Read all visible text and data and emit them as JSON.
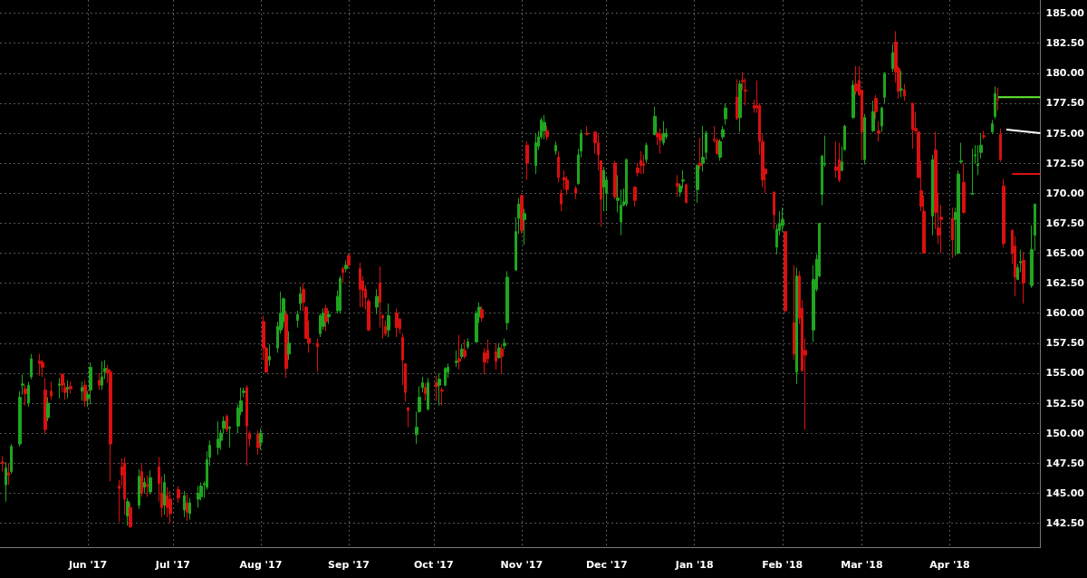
{
  "chart_data": {
    "type": "candlestick",
    "x": [
      "2017-05-02",
      "2017-05-03",
      "2017-05-04",
      "2017-05-05",
      "2017-05-08",
      "2017-05-09",
      "2017-05-10",
      "2017-05-11",
      "2017-05-12",
      "2017-05-15",
      "2017-05-16",
      "2017-05-17",
      "2017-05-18",
      "2017-05-19",
      "2017-05-22",
      "2017-05-23",
      "2017-05-24",
      "2017-05-25",
      "2017-05-26",
      "2017-05-30",
      "2017-05-31",
      "2017-06-01",
      "2017-06-02",
      "2017-06-05",
      "2017-06-06",
      "2017-06-07",
      "2017-06-08",
      "2017-06-09",
      "2017-06-12",
      "2017-06-13",
      "2017-06-14",
      "2017-06-15",
      "2017-06-16",
      "2017-06-19",
      "2017-06-20",
      "2017-06-21",
      "2017-06-22",
      "2017-06-23",
      "2017-06-26",
      "2017-06-27",
      "2017-06-28",
      "2017-06-29",
      "2017-06-30",
      "2017-07-03",
      "2017-07-05",
      "2017-07-06",
      "2017-07-07",
      "2017-07-10",
      "2017-07-11",
      "2017-07-12",
      "2017-07-13",
      "2017-07-14",
      "2017-07-17",
      "2017-07-18",
      "2017-07-19",
      "2017-07-20",
      "2017-07-21",
      "2017-07-24",
      "2017-07-25",
      "2017-07-26",
      "2017-07-27",
      "2017-07-28",
      "2017-07-31",
      "2017-08-01",
      "2017-08-02",
      "2017-08-03",
      "2017-08-04",
      "2017-08-07",
      "2017-08-08",
      "2017-08-09",
      "2017-08-10",
      "2017-08-11",
      "2017-08-14",
      "2017-08-15",
      "2017-08-16",
      "2017-08-17",
      "2017-08-18",
      "2017-08-21",
      "2017-08-22",
      "2017-08-23",
      "2017-08-24",
      "2017-08-25",
      "2017-08-28",
      "2017-08-29",
      "2017-08-30",
      "2017-08-31",
      "2017-09-01",
      "2017-09-05",
      "2017-09-06",
      "2017-09-07",
      "2017-09-08",
      "2017-09-11",
      "2017-09-12",
      "2017-09-13",
      "2017-09-14",
      "2017-09-15",
      "2017-09-18",
      "2017-09-19",
      "2017-09-20",
      "2017-09-21",
      "2017-09-22",
      "2017-09-25",
      "2017-09-26",
      "2017-09-27",
      "2017-09-28",
      "2017-09-29",
      "2017-10-02",
      "2017-10-03",
      "2017-10-04",
      "2017-10-05",
      "2017-10-06",
      "2017-10-09",
      "2017-10-10",
      "2017-10-11",
      "2017-10-12",
      "2017-10-13",
      "2017-10-16",
      "2017-10-17",
      "2017-10-18",
      "2017-10-19",
      "2017-10-20",
      "2017-10-23",
      "2017-10-24",
      "2017-10-25",
      "2017-10-26",
      "2017-10-27",
      "2017-10-30",
      "2017-10-31",
      "2017-11-01",
      "2017-11-02",
      "2017-11-03",
      "2017-11-06",
      "2017-11-07",
      "2017-11-08",
      "2017-11-09",
      "2017-11-10",
      "2017-11-13",
      "2017-11-14",
      "2017-11-15",
      "2017-11-16",
      "2017-11-17",
      "2017-11-20",
      "2017-11-21",
      "2017-11-22",
      "2017-11-24",
      "2017-11-27",
      "2017-11-28",
      "2017-11-29",
      "2017-11-30",
      "2017-12-01",
      "2017-12-04",
      "2017-12-05",
      "2017-12-06",
      "2017-12-07",
      "2017-12-08",
      "2017-12-11",
      "2017-12-12",
      "2017-12-13",
      "2017-12-14",
      "2017-12-15",
      "2017-12-18",
      "2017-12-19",
      "2017-12-20",
      "2017-12-21",
      "2017-12-22",
      "2017-12-26",
      "2017-12-27",
      "2017-12-28",
      "2017-12-29",
      "2018-01-02",
      "2018-01-03",
      "2018-01-04",
      "2018-01-05",
      "2018-01-08",
      "2018-01-09",
      "2018-01-10",
      "2018-01-11",
      "2018-01-12",
      "2018-01-16",
      "2018-01-17",
      "2018-01-18",
      "2018-01-19",
      "2018-01-22",
      "2018-01-23",
      "2018-01-24",
      "2018-01-25",
      "2018-01-26",
      "2018-01-29",
      "2018-01-30",
      "2018-01-31",
      "2018-02-01",
      "2018-02-02",
      "2018-02-05",
      "2018-02-06",
      "2018-02-07",
      "2018-02-08",
      "2018-02-09",
      "2018-02-12",
      "2018-02-13",
      "2018-02-14",
      "2018-02-15",
      "2018-02-16",
      "2018-02-20",
      "2018-02-21",
      "2018-02-22",
      "2018-02-23",
      "2018-02-26",
      "2018-02-27",
      "2018-02-28",
      "2018-03-01",
      "2018-03-02",
      "2018-03-05",
      "2018-03-06",
      "2018-03-07",
      "2018-03-08",
      "2018-03-09",
      "2018-03-12",
      "2018-03-13",
      "2018-03-14",
      "2018-03-15",
      "2018-03-16",
      "2018-03-19",
      "2018-03-20",
      "2018-03-21",
      "2018-03-22",
      "2018-03-23",
      "2018-03-26",
      "2018-03-27",
      "2018-03-28",
      "2018-03-29",
      "2018-04-02",
      "2018-04-03",
      "2018-04-04",
      "2018-04-05",
      "2018-04-06",
      "2018-04-09",
      "2018-04-10",
      "2018-04-11",
      "2018-04-12",
      "2018-04-13",
      "2018-04-16",
      "2018-04-17",
      "2018-04-18",
      "2018-04-19",
      "2018-04-20",
      "2018-04-23",
      "2018-04-24",
      "2018-04-25",
      "2018-04-26",
      "2018-04-27",
      "2018-04-30",
      "2018-05-01"
    ],
    "ohlc": [
      [
        147.6,
        148.1,
        146.8,
        147.5
      ],
      [
        145.7,
        147.6,
        144.3,
        147.1
      ],
      [
        146.7,
        147.5,
        145.7,
        146.5
      ],
      [
        146.8,
        149.1,
        146.6,
        148.9
      ],
      [
        149.1,
        153.5,
        148.9,
        153.0
      ],
      [
        154.0,
        154.9,
        153.2,
        154.1
      ],
      [
        153.7,
        154.0,
        152.3,
        153.3
      ],
      [
        152.5,
        154.3,
        152.2,
        154.0
      ],
      [
        154.7,
        156.6,
        154.5,
        156.2
      ],
      [
        156.0,
        156.6,
        154.8,
        155.8
      ],
      [
        155.9,
        156.1,
        154.7,
        155.5
      ],
      [
        153.6,
        154.6,
        149.9,
        150.3
      ],
      [
        151.3,
        153.0,
        151.0,
        152.5
      ],
      [
        153.5,
        154.3,
        152.8,
        153.1
      ],
      [
        154.0,
        154.6,
        152.9,
        154.1
      ],
      [
        154.9,
        155.0,
        153.4,
        154.0
      ],
      [
        153.8,
        154.2,
        152.8,
        153.4
      ],
      [
        153.7,
        154.4,
        152.9,
        153.8
      ],
      [
        153.9,
        154.3,
        153.3,
        153.7
      ],
      [
        153.5,
        154.3,
        152.7,
        153.8
      ],
      [
        154.0,
        154.4,
        152.2,
        152.7
      ],
      [
        152.9,
        153.5,
        152.2,
        153.2
      ],
      [
        153.6,
        155.9,
        152.4,
        155.5
      ],
      [
        154.4,
        155.0,
        153.6,
        154.0
      ],
      [
        154.0,
        156.0,
        153.6,
        154.7
      ],
      [
        155.1,
        156.1,
        154.5,
        155.4
      ],
      [
        155.3,
        155.7,
        154.2,
        155.0
      ],
      [
        155.1,
        155.3,
        146.0,
        149.1
      ],
      [
        145.6,
        146.1,
        142.6,
        145.4
      ],
      [
        147.2,
        147.9,
        145.6,
        146.5
      ],
      [
        147.5,
        148.0,
        143.2,
        144.5
      ],
      [
        143.1,
        144.6,
        142.3,
        144.3
      ],
      [
        143.8,
        144.2,
        142.1,
        142.2
      ],
      [
        144.0,
        147.0,
        143.7,
        146.4
      ],
      [
        146.8,
        147.4,
        144.7,
        145.0
      ],
      [
        145.5,
        146.3,
        145.0,
        145.9
      ],
      [
        145.7,
        146.5,
        144.7,
        145.6
      ],
      [
        145.1,
        146.9,
        144.9,
        146.3
      ],
      [
        147.2,
        148.0,
        144.3,
        145.8
      ],
      [
        145.0,
        146.4,
        143.0,
        143.8
      ],
      [
        144.0,
        146.6,
        143.2,
        145.9
      ],
      [
        144.8,
        145.5,
        143.0,
        143.8
      ],
      [
        144.5,
        145.2,
        142.5,
        143.3
      ],
      [
        145.3,
        145.6,
        144.2,
        144.6
      ],
      [
        143.6,
        145.2,
        143.0,
        144.8
      ],
      [
        144.2,
        144.9,
        142.7,
        143.4
      ],
      [
        143.3,
        144.6,
        142.8,
        144.2
      ],
      [
        144.5,
        145.6,
        143.8,
        145.0
      ],
      [
        144.7,
        145.9,
        144.4,
        145.6
      ],
      [
        145.7,
        146.0,
        144.6,
        145.8
      ],
      [
        145.5,
        148.5,
        145.3,
        147.8
      ],
      [
        148.0,
        149.4,
        147.3,
        149.0
      ],
      [
        148.8,
        151.0,
        148.2,
        149.5
      ],
      [
        149.4,
        150.3,
        148.6,
        150.0
      ],
      [
        150.4,
        151.4,
        150.0,
        151.0
      ],
      [
        151.4,
        151.6,
        150.1,
        150.3
      ],
      [
        150.4,
        150.6,
        148.8,
        150.5
      ],
      [
        150.6,
        152.4,
        150.0,
        152.1
      ],
      [
        151.8,
        153.8,
        151.5,
        152.7
      ],
      [
        153.4,
        153.8,
        153.0,
        153.5
      ],
      [
        153.8,
        154.0,
        147.3,
        150.6
      ],
      [
        150.0,
        150.2,
        148.9,
        149.5
      ],
      [
        149.9,
        150.2,
        148.2,
        148.8
      ],
      [
        149.2,
        150.4,
        148.6,
        150.0
      ],
      [
        159.3,
        159.8,
        156.1,
        157.1
      ],
      [
        157.1,
        157.2,
        155.0,
        155.1
      ],
      [
        156.1,
        157.4,
        155.6,
        156.4
      ],
      [
        157.1,
        159.3,
        156.7,
        158.9
      ],
      [
        158.6,
        161.8,
        158.3,
        160.0
      ],
      [
        159.3,
        161.3,
        158.8,
        161.2
      ],
      [
        159.9,
        160.2,
        154.6,
        155.4
      ],
      [
        156.6,
        158.5,
        156.1,
        157.5
      ],
      [
        159.4,
        160.2,
        158.8,
        159.9
      ],
      [
        160.8,
        162.2,
        160.2,
        161.6
      ],
      [
        162.0,
        162.5,
        160.2,
        160.9
      ],
      [
        160.5,
        160.6,
        157.9,
        157.9
      ],
      [
        157.9,
        159.4,
        156.7,
        157.5
      ],
      [
        157.5,
        157.9,
        155.1,
        157.2
      ],
      [
        158.3,
        160.0,
        158.0,
        159.8
      ],
      [
        158.9,
        160.4,
        158.6,
        160.0
      ],
      [
        160.4,
        160.7,
        158.5,
        159.3
      ],
      [
        159.7,
        160.2,
        159.1,
        159.9
      ],
      [
        160.2,
        161.9,
        160.0,
        161.4
      ],
      [
        160.2,
        163.1,
        160.0,
        162.9
      ],
      [
        163.7,
        163.9,
        162.5,
        163.4
      ],
      [
        163.7,
        164.4,
        163.4,
        164.0
      ],
      [
        164.8,
        165.0,
        163.8,
        164.0
      ],
      [
        163.7,
        164.2,
        160.5,
        162.0
      ],
      [
        162.7,
        163.1,
        160.5,
        161.9
      ],
      [
        162.0,
        162.3,
        160.3,
        161.3
      ],
      [
        161.0,
        161.2,
        158.5,
        158.6
      ],
      [
        160.5,
        162.0,
        159.9,
        161.4
      ],
      [
        162.5,
        163.9,
        158.8,
        160.9
      ],
      [
        159.8,
        159.9,
        157.9,
        159.6
      ],
      [
        158.9,
        159.4,
        158.1,
        158.3
      ],
      [
        158.6,
        160.8,
        158.0,
        159.8
      ],
      [
        160.0,
        160.4,
        158.0,
        158.8
      ],
      [
        159.5,
        159.6,
        158.3,
        158.7
      ],
      [
        158.0,
        158.3,
        154.0,
        156.1
      ],
      [
        155.8,
        155.8,
        152.6,
        153.4
      ],
      [
        152.1,
        152.2,
        150.5,
        151.9
      ],
      [
        149.9,
        151.8,
        149.1,
        150.5
      ],
      [
        151.8,
        153.9,
        151.7,
        153.0
      ],
      [
        153.8,
        154.7,
        153.4,
        154.2
      ],
      [
        153.8,
        154.2,
        152.7,
        153.3
      ],
      [
        152.0,
        154.6,
        151.9,
        154.2
      ],
      [
        154.2,
        154.8,
        152.7,
        153.9
      ],
      [
        154.0,
        155.0,
        152.3,
        154.5
      ],
      [
        153.6,
        153.8,
        152.3,
        153.5
      ],
      [
        154.0,
        155.5,
        153.9,
        155.4
      ],
      [
        155.1,
        155.8,
        154.6,
        155.5
      ],
      [
        155.9,
        156.9,
        155.5,
        156.0
      ],
      [
        156.2,
        158.2,
        155.3,
        156.0
      ],
      [
        156.4,
        157.4,
        156.2,
        157.0
      ],
      [
        156.9,
        157.8,
        156.2,
        156.4
      ],
      [
        157.2,
        157.9,
        157.0,
        157.6
      ],
      [
        157.6,
        160.2,
        157.6,
        160.0
      ],
      [
        159.7,
        160.9,
        159.2,
        160.5
      ],
      [
        160.3,
        160.6,
        159.3,
        159.6
      ],
      [
        156.7,
        157.1,
        154.9,
        155.9
      ],
      [
        156.9,
        157.8,
        155.8,
        156.2
      ],
      [
        156.8,
        157.5,
        155.3,
        156.0
      ],
      [
        156.3,
        157.5,
        156.2,
        157.1
      ],
      [
        157.0,
        157.4,
        154.9,
        156.4
      ],
      [
        157.3,
        157.9,
        157.0,
        157.5
      ],
      [
        159.2,
        163.5,
        158.6,
        163.0
      ],
      [
        163.6,
        168.0,
        163.5,
        166.8
      ],
      [
        167.9,
        169.6,
        166.6,
        169.1
      ],
      [
        169.8,
        169.9,
        166.6,
        166.9
      ],
      [
        167.8,
        168.7,
        165.7,
        168.3
      ],
      [
        174.0,
        174.3,
        171.1,
        172.5
      ],
      [
        172.3,
        175.0,
        171.6,
        174.2
      ],
      [
        173.9,
        175.2,
        173.6,
        174.7
      ],
      [
        174.7,
        176.3,
        174.5,
        176.1
      ],
      [
        175.2,
        176.5,
        174.5,
        175.9
      ],
      [
        175.2,
        175.6,
        174.4,
        174.7
      ],
      [
        173.5,
        174.3,
        173.2,
        174.0
      ],
      [
        173.0,
        173.5,
        170.9,
        171.3
      ],
      [
        170.0,
        170.3,
        168.5,
        169.1
      ],
      [
        171.3,
        171.9,
        170.3,
        171.1
      ],
      [
        171.1,
        171.4,
        169.9,
        170.3
      ],
      [
        170.4,
        170.6,
        169.5,
        170.0
      ],
      [
        170.8,
        173.7,
        170.7,
        173.2
      ],
      [
        173.5,
        175.3,
        173.0,
        175.0
      ],
      [
        175.0,
        175.6,
        174.8,
        174.9
      ],
      [
        175.1,
        175.1,
        173.3,
        174.2
      ],
      [
        174.2,
        174.9,
        171.9,
        173.2
      ],
      [
        172.7,
        172.7,
        167.2,
        169.5
      ],
      [
        170.5,
        172.2,
        168.5,
        171.9
      ],
      [
        170.0,
        171.4,
        168.5,
        171.1
      ],
      [
        172.5,
        172.7,
        169.5,
        169.7
      ],
      [
        169.4,
        171.5,
        168.4,
        169.6
      ],
      [
        167.6,
        170.3,
        166.5,
        169.0
      ],
      [
        169.0,
        170.4,
        168.9,
        169.3
      ],
      [
        169.1,
        172.9,
        168.9,
        172.8
      ],
      [
        170.5,
        170.6,
        168.9,
        169.4
      ],
      [
        172.1,
        172.5,
        171.4,
        171.7
      ],
      [
        172.7,
        173.5,
        171.6,
        172.3
      ],
      [
        172.5,
        173.2,
        171.6,
        172.3
      ],
      [
        172.8,
        174.2,
        172.5,
        174.0
      ],
      [
        174.9,
        177.2,
        174.8,
        176.4
      ],
      [
        175.0,
        175.1,
        174.0,
        174.7
      ],
      [
        174.9,
        175.4,
        173.3,
        174.4
      ],
      [
        174.2,
        176.0,
        174.0,
        175.0
      ],
      [
        174.7,
        175.4,
        174.5,
        175.0
      ],
      [
        170.8,
        171.5,
        169.7,
        170.6
      ],
      [
        170.1,
        170.8,
        169.7,
        170.6
      ],
      [
        171.0,
        171.9,
        170.4,
        171.1
      ],
      [
        170.7,
        170.8,
        169.2,
        169.2
      ],
      [
        170.3,
        172.4,
        169.2,
        172.3
      ],
      [
        172.5,
        174.6,
        172.0,
        172.3
      ],
      [
        172.5,
        175.6,
        171.8,
        173.0
      ],
      [
        173.4,
        175.2,
        172.8,
        175.0
      ],
      [
        174.5,
        175.6,
        174.2,
        174.4
      ],
      [
        174.4,
        174.6,
        173.2,
        173.3
      ],
      [
        173.0,
        174.5,
        172.7,
        174.3
      ],
      [
        174.7,
        175.6,
        174.5,
        175.3
      ],
      [
        176.2,
        177.5,
        175.7,
        177.1
      ],
      [
        178.0,
        179.5,
        176.1,
        176.2
      ],
      [
        176.3,
        179.4,
        175.1,
        179.1
      ],
      [
        179.4,
        180.1,
        178.6,
        179.3
      ],
      [
        178.6,
        179.6,
        177.3,
        178.5
      ],
      [
        177.3,
        177.8,
        176.7,
        177.1
      ],
      [
        177.3,
        179.4,
        176.7,
        177.1
      ],
      [
        177.3,
        177.5,
        173.2,
        174.3
      ],
      [
        174.3,
        174.9,
        170.5,
        171.1
      ],
      [
        172.0,
        172.0,
        170.0,
        171.6
      ],
      [
        170.1,
        170.1,
        167.0,
        168.2
      ],
      [
        165.5,
        167.4,
        164.9,
        167.0
      ],
      [
        166.9,
        168.5,
        166.5,
        167.5
      ],
      [
        167.3,
        168.8,
        166.8,
        167.8
      ],
      [
        166.8,
        166.8,
        160.1,
        160.2
      ],
      [
        159.2,
        164.0,
        156.1,
        156.6
      ],
      [
        155.1,
        163.8,
        154.1,
        163.1
      ],
      [
        163.1,
        163.5,
        159.1,
        159.6
      ],
      [
        160.4,
        161.1,
        155.2,
        155.2
      ],
      [
        156.9,
        157.9,
        150.3,
        156.5
      ],
      [
        158.6,
        164.0,
        157.6,
        162.8
      ],
      [
        162.0,
        164.9,
        161.8,
        164.5
      ],
      [
        163.1,
        167.5,
        163.0,
        167.5
      ],
      [
        169.9,
        173.2,
        169.0,
        173.1
      ],
      [
        172.4,
        174.8,
        172.2,
        172.5
      ],
      [
        172.2,
        174.3,
        171.3,
        171.9
      ],
      [
        172.8,
        174.2,
        170.9,
        171.1
      ],
      [
        171.9,
        173.9,
        171.8,
        172.6
      ],
      [
        173.6,
        175.7,
        173.6,
        175.6
      ],
      [
        176.3,
        179.4,
        176.2,
        179.0
      ],
      [
        179.1,
        180.6,
        178.2,
        178.5
      ],
      [
        179.4,
        180.6,
        178.1,
        178.2
      ],
      [
        178.6,
        178.6,
        172.8,
        175.1
      ],
      [
        172.8,
        176.6,
        172.4,
        176.3
      ],
      [
        175.2,
        177.7,
        175.1,
        176.8
      ],
      [
        177.9,
        178.2,
        176.2,
        176.8
      ],
      [
        175.2,
        176.0,
        174.3,
        175.0
      ],
      [
        175.6,
        177.2,
        175.1,
        177.1
      ],
      [
        178.0,
        180.1,
        177.5,
        180.0
      ],
      [
        180.4,
        182.4,
        180.1,
        181.7
      ],
      [
        182.6,
        183.5,
        179.2,
        180.1
      ],
      [
        180.4,
        180.6,
        177.9,
        178.5
      ],
      [
        178.6,
        180.2,
        178.0,
        178.7
      ],
      [
        178.6,
        179.1,
        177.7,
        178.1
      ],
      [
        177.5,
        177.5,
        173.7,
        175.3
      ],
      [
        175.4,
        176.8,
        175.1,
        175.2
      ],
      [
        175.1,
        175.1,
        171.3,
        171.3
      ],
      [
        170.2,
        172.7,
        168.5,
        168.9
      ],
      [
        168.5,
        169.8,
        165.0,
        165.0
      ],
      [
        168.1,
        173.2,
        166.5,
        172.8
      ],
      [
        173.6,
        175.1,
        167.0,
        168.4
      ],
      [
        167.1,
        170.0,
        165.8,
        166.5
      ],
      [
        168.0,
        169.0,
        165.0,
        167.8
      ],
      [
        167.9,
        168.8,
        164.6,
        166.1
      ],
      [
        167.8,
        168.8,
        164.8,
        168.4
      ],
      [
        165.0,
        171.9,
        164.9,
        171.6
      ],
      [
        172.6,
        174.2,
        172.5,
        172.7
      ],
      [
        170.9,
        172.5,
        168.3,
        168.4
      ],
      [
        169.9,
        173.7,
        169.9,
        170.0
      ],
      [
        173.1,
        174.0,
        172.5,
        173.2
      ],
      [
        172.3,
        174.0,
        171.5,
        172.4
      ],
      [
        173.4,
        175.0,
        172.9,
        174.0
      ],
      [
        174.8,
        175.2,
        174.5,
        174.7
      ],
      [
        175.1,
        176.1,
        174.9,
        175.8
      ],
      [
        176.4,
        178.9,
        176.2,
        178.3
      ],
      [
        177.8,
        178.8,
        176.9,
        177.8
      ],
      [
        174.9,
        175.4,
        172.6,
        172.8
      ],
      [
        170.6,
        171.2,
        165.5,
        165.8
      ],
      [
        166.9,
        167.0,
        164.1,
        165.0
      ],
      [
        165.6,
        166.4,
        161.4,
        163.0
      ],
      [
        162.8,
        164.1,
        162.8,
        163.8
      ],
      [
        164.2,
        165.3,
        163.4,
        164.3
      ],
      [
        164.4,
        165.1,
        160.8,
        162.5
      ],
      [
        162.3,
        167.3,
        162.1,
        165.3
      ],
      [
        166.5,
        169.1,
        165.2,
        169.1
      ]
    ],
    "series": [
      {
        "type": "line",
        "color": "#66ee33",
        "x": [
          "2018-04-18",
          "2018-05-03"
        ],
        "values": [
          178.0,
          178.0
        ]
      },
      {
        "type": "line",
        "color": "#ffffff",
        "x": [
          "2018-04-21",
          "2018-05-03"
        ],
        "values": [
          175.3,
          175.0
        ]
      },
      {
        "type": "line",
        "color": "#e01010",
        "x": [
          "2018-04-23",
          "2018-05-03"
        ],
        "values": [
          171.6,
          171.6
        ]
      }
    ],
    "xlim": [
      "2017-05-01",
      "2018-05-03"
    ],
    "xticks": [
      {
        "value": "2017-06-01",
        "label": "Jun '17"
      },
      {
        "value": "2017-07-01",
        "label": "Jul '17"
      },
      {
        "value": "2017-08-01",
        "label": "Aug '17"
      },
      {
        "value": "2017-09-01",
        "label": "Sep '17"
      },
      {
        "value": "2017-10-01",
        "label": "Oct '17"
      },
      {
        "value": "2017-11-01",
        "label": "Nov '17"
      },
      {
        "value": "2017-12-01",
        "label": "Dec '17"
      },
      {
        "value": "2018-01-01",
        "label": "Jan '18"
      },
      {
        "value": "2018-02-01",
        "label": "Feb '18"
      },
      {
        "value": "2018-03-01",
        "label": "Mar '18"
      },
      {
        "value": "2018-04-01",
        "label": "Apr '18"
      }
    ],
    "ylim": [
      140.5,
      186.1
    ],
    "yticks": [
      {
        "value": 142.5,
        "label": "142.50"
      },
      {
        "value": 145,
        "label": "145.00"
      },
      {
        "value": 147.5,
        "label": "147.50"
      },
      {
        "value": 150,
        "label": "150.00"
      },
      {
        "value": 152.5,
        "label": "152.50"
      },
      {
        "value": 155,
        "label": "155.00"
      },
      {
        "value": 157.5,
        "label": "157.50"
      },
      {
        "value": 160,
        "label": "160.00"
      },
      {
        "value": 162.5,
        "label": "162.50"
      },
      {
        "value": 165,
        "label": "165.00"
      },
      {
        "value": 167.5,
        "label": "167.50"
      },
      {
        "value": 170,
        "label": "170.00"
      },
      {
        "value": 172.5,
        "label": "172.50"
      },
      {
        "value": 175,
        "label": "175.00"
      },
      {
        "value": 177.5,
        "label": "177.50"
      },
      {
        "value": 180,
        "label": "180.00"
      },
      {
        "value": 182.5,
        "label": "182.50"
      },
      {
        "value": 185,
        "label": "185.00"
      }
    ],
    "grid": true
  }
}
